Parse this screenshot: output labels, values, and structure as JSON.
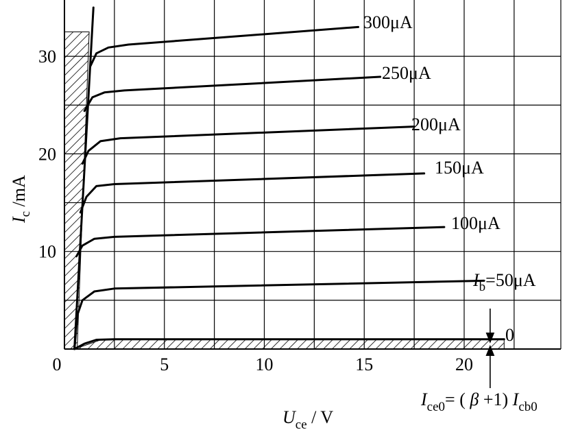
{
  "chart_data": {
    "type": "line",
    "title": "",
    "xlabel": {
      "main": "U",
      "sub": "ce",
      "unit": " / V"
    },
    "ylabel": {
      "main": "I",
      "sub": "c",
      "unit": " /mA"
    },
    "xlim": [
      0,
      25
    ],
    "ylim": [
      0,
      35
    ],
    "xticks": [
      0,
      5,
      10,
      15,
      20
    ],
    "yticks": [
      10,
      20,
      30
    ],
    "grid": true,
    "series": [
      {
        "name": "0",
        "label": "0",
        "points": [
          [
            0.5,
            0
          ],
          [
            1.0,
            0.55
          ],
          [
            1.6,
            0.95
          ],
          [
            2.5,
            1.0
          ],
          [
            22,
            1.0
          ]
        ]
      },
      {
        "name": "Ib=50μA",
        "label": {
          "main": "I",
          "sub": "b",
          "rest": "=50μA"
        },
        "points": [
          [
            0.5,
            0
          ],
          [
            0.65,
            3.5
          ],
          [
            0.9,
            5.0
          ],
          [
            1.5,
            5.9
          ],
          [
            2.5,
            6.2
          ],
          [
            21,
            7.0
          ]
        ]
      },
      {
        "name": "100μA",
        "label": "100μA",
        "points": [
          [
            0.6,
            9.5
          ],
          [
            0.9,
            10.6
          ],
          [
            1.5,
            11.3
          ],
          [
            2.5,
            11.5
          ],
          [
            19,
            12.5
          ]
        ]
      },
      {
        "name": "150μA",
        "label": "150μA",
        "points": [
          [
            0.8,
            14.0
          ],
          [
            1.1,
            15.6
          ],
          [
            1.6,
            16.7
          ],
          [
            2.5,
            16.9
          ],
          [
            18,
            18.0
          ]
        ]
      },
      {
        "name": "200μA",
        "label": "200μA",
        "points": [
          [
            0.9,
            19.0
          ],
          [
            1.2,
            20.3
          ],
          [
            1.8,
            21.3
          ],
          [
            2.8,
            21.6
          ],
          [
            17.5,
            22.8
          ]
        ]
      },
      {
        "name": "250μA",
        "label": "250μA",
        "points": [
          [
            1.0,
            24.4
          ],
          [
            1.4,
            25.8
          ],
          [
            2.0,
            26.3
          ],
          [
            3.0,
            26.5
          ],
          [
            15.8,
            27.9
          ]
        ]
      },
      {
        "name": "300μA",
        "label": "300μA",
        "points": [
          [
            1.3,
            29.0
          ],
          [
            1.6,
            30.3
          ],
          [
            2.2,
            30.9
          ],
          [
            3.2,
            31.2
          ],
          [
            14.7,
            33.0
          ]
        ]
      }
    ],
    "saturation_line": [
      [
        0.5,
        0
      ],
      [
        1.45,
        35
      ]
    ],
    "hatched_regions": [
      "saturation",
      "cutoff"
    ],
    "annotation": {
      "parts": [
        {
          "t": "I",
          "style": "italic"
        },
        {
          "t": "ce0",
          "style": "sub"
        },
        {
          "t": "= ( ",
          "style": "normal"
        },
        {
          "t": "β",
          "style": "italic"
        },
        {
          "t": " +1) ",
          "style": "normal"
        },
        {
          "t": "I",
          "style": "italic"
        },
        {
          "t": "cb0",
          "style": "sub"
        }
      ]
    }
  }
}
